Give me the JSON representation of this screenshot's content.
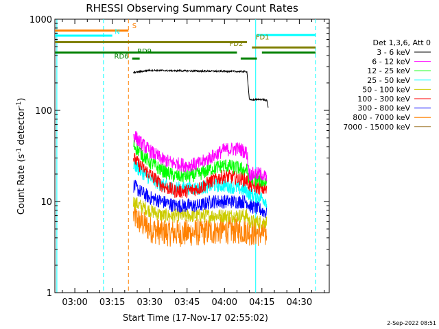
{
  "chart_data": {
    "type": "line",
    "title": "RHESSI Observing Summary Count Rates",
    "xlabel": "Start Time (17-Nov-17 02:55:02)",
    "ylabel_main": "Count Rate (s",
    "ylabel_sup1": "-1",
    "ylabel_mid": " detector",
    "ylabel_sup2": "-1",
    "ylabel_end": ")",
    "y_scale": "log",
    "ylim": [
      1,
      1000
    ],
    "xlim_minutes": [
      -8,
      102
    ],
    "x_ticks": [
      {
        "t": 0,
        "label": "03:00"
      },
      {
        "t": 15,
        "label": "03:15"
      },
      {
        "t": 30,
        "label": "03:30"
      },
      {
        "t": 45,
        "label": "03:45"
      },
      {
        "t": 60,
        "label": "04:00"
      },
      {
        "t": 75,
        "label": "04:15"
      },
      {
        "t": 90,
        "label": "04:30"
      }
    ],
    "y_ticks": [
      {
        "v": 1,
        "label": "1"
      },
      {
        "v": 10,
        "label": "10"
      },
      {
        "v": 100,
        "label": "100"
      },
      {
        "v": 1000,
        "label": "1000"
      }
    ],
    "legend_header": "Det 1,3,6, Att 0",
    "legend_placement": "right",
    "series": [
      {
        "name": "3 - 6 keV",
        "color": "#000000",
        "values": [
          [
            23.5,
            260
          ],
          [
            30,
            275
          ],
          [
            40,
            272
          ],
          [
            50,
            270
          ],
          [
            60,
            268
          ],
          [
            69,
            266
          ],
          [
            70,
            130
          ],
          [
            75,
            132
          ],
          [
            77,
            128
          ],
          [
            77.5,
            108
          ]
        ]
      },
      {
        "name": "6 - 12 keV",
        "color": "#ff00ff",
        "values": [
          [
            23.5,
            55
          ],
          [
            26,
            45
          ],
          [
            30,
            36
          ],
          [
            35,
            29
          ],
          [
            40,
            26
          ],
          [
            45,
            25
          ],
          [
            50,
            26
          ],
          [
            55,
            31
          ],
          [
            60,
            37
          ],
          [
            66,
            38
          ],
          [
            69,
            34
          ],
          [
            70,
            20
          ],
          [
            75,
            20
          ],
          [
            77,
            18
          ]
        ]
      },
      {
        "name": "12 - 25 keV",
        "color": "#00ff00",
        "values": [
          [
            23.5,
            42
          ],
          [
            26,
            35
          ],
          [
            30,
            27
          ],
          [
            35,
            22
          ],
          [
            40,
            19
          ],
          [
            45,
            19
          ],
          [
            50,
            20
          ],
          [
            55,
            23
          ],
          [
            60,
            25
          ],
          [
            66,
            23
          ],
          [
            69,
            22
          ],
          [
            70,
            18
          ],
          [
            75,
            17
          ],
          [
            77,
            16
          ]
        ]
      },
      {
        "name": "25 - 50 keV",
        "color": "#00ffff",
        "values": [
          [
            23.5,
            26
          ],
          [
            26,
            22
          ],
          [
            30,
            18
          ],
          [
            35,
            15
          ],
          [
            40,
            14
          ],
          [
            45,
            14
          ],
          [
            50,
            14
          ],
          [
            55,
            15
          ],
          [
            60,
            15
          ],
          [
            66,
            14
          ],
          [
            69,
            13
          ],
          [
            70,
            12
          ],
          [
            75,
            11
          ],
          [
            77,
            10
          ]
        ]
      },
      {
        "name": "50 - 100 keV",
        "color": "#cccc00",
        "values": [
          [
            23.5,
            10
          ],
          [
            26,
            9
          ],
          [
            30,
            8
          ],
          [
            35,
            7
          ],
          [
            40,
            7
          ],
          [
            45,
            7
          ],
          [
            50,
            7
          ],
          [
            55,
            7
          ],
          [
            60,
            7
          ],
          [
            66,
            7
          ],
          [
            69,
            7
          ],
          [
            70,
            6
          ],
          [
            75,
            6
          ],
          [
            77,
            6
          ]
        ]
      },
      {
        "name": "100 - 300 keV",
        "color": "#ff0000",
        "values": [
          [
            23.5,
            30
          ],
          [
            26,
            25
          ],
          [
            30,
            20
          ],
          [
            35,
            15
          ],
          [
            40,
            13
          ],
          [
            45,
            13
          ],
          [
            50,
            14
          ],
          [
            55,
            17
          ],
          [
            60,
            19
          ],
          [
            66,
            18
          ],
          [
            69,
            17
          ],
          [
            70,
            15
          ],
          [
            75,
            14
          ],
          [
            77,
            13
          ]
        ]
      },
      {
        "name": "300 - 800 keV",
        "color": "#0000ff",
        "values": [
          [
            23.5,
            15
          ],
          [
            26,
            13
          ],
          [
            30,
            11
          ],
          [
            35,
            10
          ],
          [
            40,
            9
          ],
          [
            45,
            9
          ],
          [
            50,
            9
          ],
          [
            55,
            10
          ],
          [
            60,
            10
          ],
          [
            66,
            10
          ],
          [
            69,
            10
          ],
          [
            70,
            9
          ],
          [
            75,
            8
          ],
          [
            77,
            7.5
          ]
        ]
      },
      {
        "name": "800 - 7000 keV",
        "color": "#ff8000",
        "values": [
          [
            23.5,
            7
          ],
          [
            26,
            6
          ],
          [
            30,
            5
          ],
          [
            35,
            4.6
          ],
          [
            40,
            4.5
          ],
          [
            45,
            4.5
          ],
          [
            50,
            4.6
          ],
          [
            55,
            4.7
          ],
          [
            60,
            4.8
          ],
          [
            66,
            4.8
          ],
          [
            69,
            4.8
          ],
          [
            70,
            4.6
          ],
          [
            75,
            4.5
          ],
          [
            77,
            4.3
          ]
        ]
      },
      {
        "name": "7000 - 15000 keV",
        "color": "#a07830",
        "values": []
      }
    ],
    "vertical_lines": [
      {
        "t": -7.2,
        "color": "#00ffff",
        "style": "solid"
      },
      {
        "t": 11.5,
        "color": "#00ffff",
        "style": "dashed"
      },
      {
        "t": 21.5,
        "color": "#ff8000",
        "style": "dashed"
      },
      {
        "t": 72.5,
        "color": "#00ffff",
        "style": "solid"
      },
      {
        "t": 96.5,
        "color": "#00ffff",
        "style": "dashed"
      }
    ],
    "annotations": [
      {
        "label": "S",
        "color": "#ff8000",
        "t": 23,
        "v": 800,
        "bars": [
          [
            -8,
            21.5
          ]
        ],
        "bar_v": 750,
        "bar_color": "#ff8000",
        "thick": 3
      },
      {
        "label": "N",
        "color": "#00ffff",
        "t": 16,
        "v": 690,
        "bars": [
          [
            -8,
            15
          ]
        ],
        "bar_v": 660,
        "bar_color": "#00ffff",
        "thick": 3
      },
      {
        "label": "",
        "color": "#00ffff",
        "t": 0,
        "v": 0,
        "bars": [
          [
            73,
            96.5
          ]
        ],
        "bar_v": 670,
        "bar_color": "#00ffff",
        "thick": 3
      },
      {
        "label": "FD1",
        "color": "#808000",
        "t": 72.5,
        "v": 600,
        "bars": [
          [
            -8,
            69
          ]
        ],
        "bar_v": 560,
        "bar_color": "#808000",
        "thick": 3
      },
      {
        "label": "FD2",
        "color": "#808000",
        "t": 62,
        "v": 510,
        "bars": [
          [
            71,
            96.5
          ]
        ],
        "bar_v": 490,
        "bar_color": "#808000",
        "thick": 3
      },
      {
        "label": "RD6",
        "color": "#008000",
        "t": 15.8,
        "v": 370,
        "bars": [
          [
            -8,
            65
          ]
        ],
        "bar_v": 430,
        "bar_color": "#008000",
        "thick": 3
      },
      {
        "label": "RD9",
        "color": "#008000",
        "t": 25,
        "v": 420,
        "bars": [
          [
            66.5,
            73
          ],
          [
            23,
            26
          ]
        ],
        "bar_v": 370,
        "bar_color": "#008000",
        "thick": 3
      },
      {
        "label": "",
        "color": "#008000",
        "t": 0,
        "v": 0,
        "bars": [
          [
            75,
            96.5
          ]
        ],
        "bar_v": 430,
        "bar_color": "#008000",
        "thick": 3
      }
    ]
  },
  "footer_date": "2-Sep-2022 08:51"
}
